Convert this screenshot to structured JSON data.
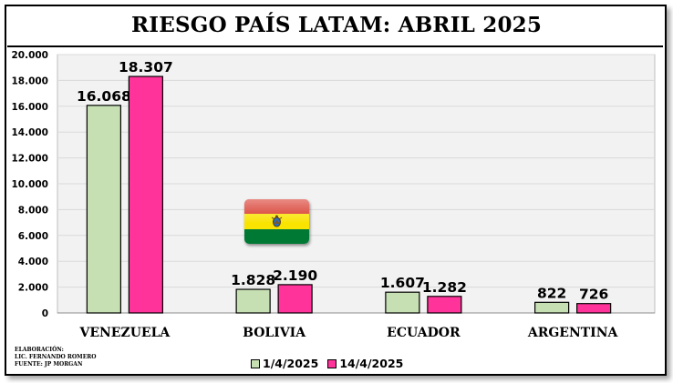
{
  "title": "RIESGO PAÍS LATAM: ABRIL 2025",
  "footnote": {
    "line1": "ELABORACIÓN:",
    "line2": "LIC. FERNANDO ROMERO",
    "line3": "FUENTE: JP MORGAN"
  },
  "flag_icon": "bolivia-flag",
  "colors": {
    "series1": "#c6e0b4",
    "series2": "#ff3399",
    "grid": "#d9d9d9",
    "plot_bg": "#f2f2f2",
    "flag_red": "#d52b1e",
    "flag_yellow": "#f9e300",
    "flag_green": "#007934"
  },
  "chart_data": {
    "type": "bar",
    "title": "RIESGO PAÍS LATAM: ABRIL 2025",
    "categories": [
      "VENEZUELA",
      "BOLIVIA",
      "ECUADOR",
      "ARGENTINA"
    ],
    "series": [
      {
        "name": "1/4/2025",
        "values": [
          16068,
          1828,
          1607,
          822
        ],
        "labels": [
          "16.068",
          "1.828",
          "1.607",
          "822"
        ]
      },
      {
        "name": "14/4/2025",
        "values": [
          18307,
          2190,
          1282,
          726
        ],
        "labels": [
          "18.307",
          "2.190",
          "1.282",
          "726"
        ]
      }
    ],
    "ylim": [
      0,
      20000
    ],
    "yticks": [
      0,
      2000,
      4000,
      6000,
      8000,
      10000,
      12000,
      14000,
      16000,
      18000,
      20000
    ],
    "ytick_labels": [
      "0",
      "2.000",
      "4.000",
      "6.000",
      "8.000",
      "10.000",
      "12.000",
      "14.000",
      "16.000",
      "18.000",
      "20.000"
    ],
    "xlabel": "",
    "ylabel": "",
    "grid": true,
    "legend": "bottom"
  }
}
